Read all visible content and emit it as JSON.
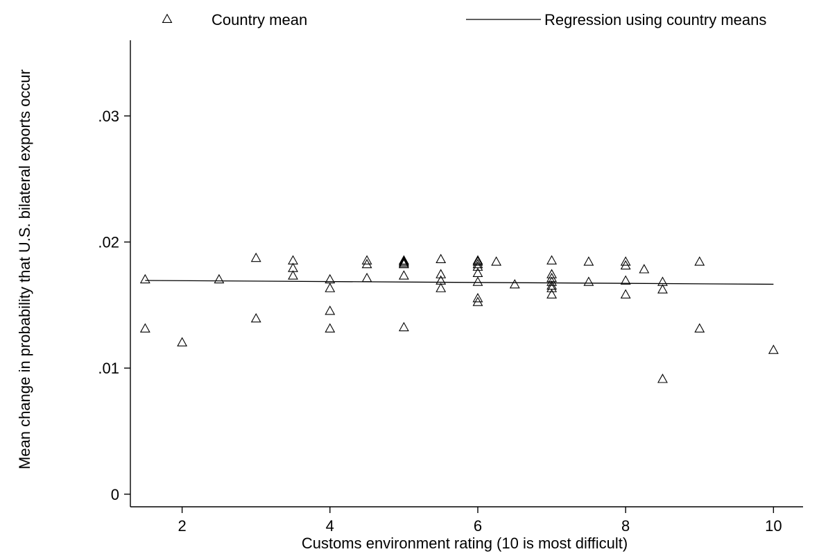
{
  "chart_data": {
    "type": "scatter",
    "xlabel": "Customs environment rating (10 is most difficult)",
    "ylabel": "Mean change in probability that U.S. bilateral exports occur",
    "xlim": [
      1.3,
      10.4
    ],
    "ylim": [
      -0.001,
      0.036
    ],
    "x_ticks": [
      2,
      4,
      6,
      8,
      10
    ],
    "x_tick_labels": [
      "2",
      "4",
      "6",
      "8",
      "10"
    ],
    "y_ticks": [
      0,
      0.01,
      0.02,
      0.03
    ],
    "y_tick_labels": [
      "0",
      ".01",
      ".02",
      ".03"
    ],
    "grid": false,
    "legend": {
      "placement": "top"
    },
    "series": [
      {
        "name": "Country mean",
        "kind": "scatter",
        "marker": "triangle-open",
        "points": [
          {
            "x": 1.5,
            "y": 0.017
          },
          {
            "x": 1.5,
            "y": 0.0131
          },
          {
            "x": 2.0,
            "y": 0.012
          },
          {
            "x": 2.5,
            "y": 0.017
          },
          {
            "x": 3.0,
            "y": 0.0187
          },
          {
            "x": 3.0,
            "y": 0.0139
          },
          {
            "x": 3.5,
            "y": 0.0185
          },
          {
            "x": 3.5,
            "y": 0.0179
          },
          {
            "x": 3.5,
            "y": 0.0173
          },
          {
            "x": 4.0,
            "y": 0.017
          },
          {
            "x": 4.0,
            "y": 0.0163
          },
          {
            "x": 4.0,
            "y": 0.0145
          },
          {
            "x": 4.0,
            "y": 0.0131
          },
          {
            "x": 4.5,
            "y": 0.0185
          },
          {
            "x": 4.5,
            "y": 0.0182
          },
          {
            "x": 4.5,
            "y": 0.0171
          },
          {
            "x": 5.0,
            "y": 0.0185
          },
          {
            "x": 5.0,
            "y": 0.0184
          },
          {
            "x": 5.0,
            "y": 0.0183
          },
          {
            "x": 5.0,
            "y": 0.0182
          },
          {
            "x": 5.0,
            "y": 0.0173
          },
          {
            "x": 5.0,
            "y": 0.0132
          },
          {
            "x": 5.5,
            "y": 0.0186
          },
          {
            "x": 5.5,
            "y": 0.0174
          },
          {
            "x": 5.5,
            "y": 0.0169
          },
          {
            "x": 5.5,
            "y": 0.0163
          },
          {
            "x": 6.0,
            "y": 0.0185
          },
          {
            "x": 6.0,
            "y": 0.0184
          },
          {
            "x": 6.0,
            "y": 0.0182
          },
          {
            "x": 6.0,
            "y": 0.018
          },
          {
            "x": 6.0,
            "y": 0.0175
          },
          {
            "x": 6.0,
            "y": 0.0168
          },
          {
            "x": 6.0,
            "y": 0.0155
          },
          {
            "x": 6.0,
            "y": 0.0152
          },
          {
            "x": 6.25,
            "y": 0.0184
          },
          {
            "x": 6.5,
            "y": 0.0166
          },
          {
            "x": 7.0,
            "y": 0.0185
          },
          {
            "x": 7.0,
            "y": 0.0174
          },
          {
            "x": 7.0,
            "y": 0.0171
          },
          {
            "x": 7.0,
            "y": 0.0168
          },
          {
            "x": 7.0,
            "y": 0.0165
          },
          {
            "x": 7.0,
            "y": 0.0163
          },
          {
            "x": 7.0,
            "y": 0.0158
          },
          {
            "x": 7.5,
            "y": 0.0184
          },
          {
            "x": 7.5,
            "y": 0.0168
          },
          {
            "x": 8.0,
            "y": 0.0184
          },
          {
            "x": 8.0,
            "y": 0.0181
          },
          {
            "x": 8.0,
            "y": 0.0169
          },
          {
            "x": 8.0,
            "y": 0.0158
          },
          {
            "x": 8.25,
            "y": 0.0178
          },
          {
            "x": 8.5,
            "y": 0.0168
          },
          {
            "x": 8.5,
            "y": 0.0162
          },
          {
            "x": 8.5,
            "y": 0.0091
          },
          {
            "x": 9.0,
            "y": 0.0184
          },
          {
            "x": 9.0,
            "y": 0.0131
          },
          {
            "x": 10.0,
            "y": 0.0114
          }
        ]
      },
      {
        "name": "Regression using country means",
        "kind": "line",
        "points": [
          {
            "x": 1.5,
            "y": 0.01695
          },
          {
            "x": 10.0,
            "y": 0.01665
          }
        ]
      }
    ]
  }
}
